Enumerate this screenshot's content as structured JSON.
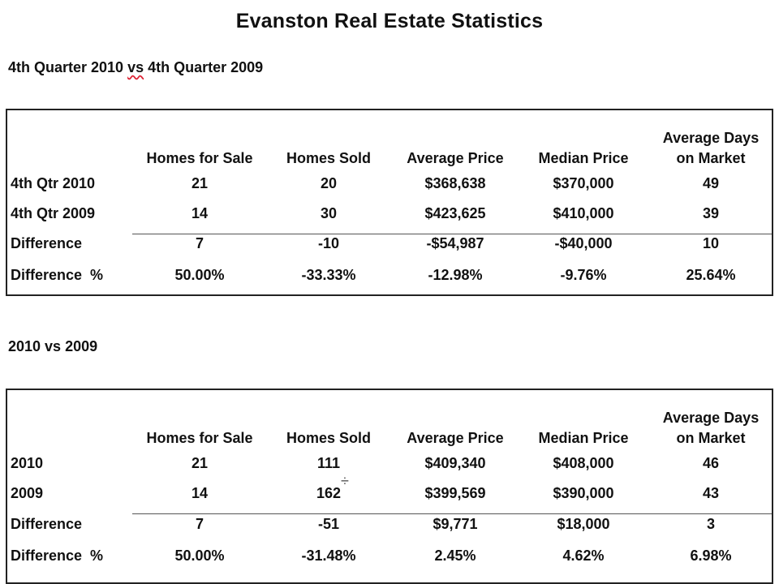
{
  "page": {
    "title": "Evanston Real Estate Statistics"
  },
  "tables": [
    {
      "heading_parts": [
        "4th Quarter 2010 ",
        "vs",
        " 4th Quarter 2009"
      ],
      "columns": [
        "Homes for Sale",
        "Homes Sold",
        "Average Price",
        "Median Price",
        "Average Days on Market"
      ],
      "column_lines": [
        [
          "Homes for Sale"
        ],
        [
          "Homes Sold"
        ],
        [
          "Average Price"
        ],
        [
          "Median Price"
        ],
        [
          "Average Days",
          "on Market"
        ]
      ],
      "rows": [
        {
          "label": "4th Qtr 2010",
          "values": [
            "21",
            "20",
            "$368,638",
            "$370,000",
            "49"
          ]
        },
        {
          "label": "4th Qtr 2009",
          "values": [
            "14",
            "30",
            "$423,625",
            "$410,000",
            "39"
          ]
        },
        {
          "label": "Difference",
          "values": [
            "7",
            "-10",
            "-$54,987",
            "-$40,000",
            "10"
          ]
        },
        {
          "label": "Difference  %",
          "values": [
            "50.00%",
            "-33.33%",
            "-12.98%",
            "-9.76%",
            "25.64%"
          ]
        }
      ]
    },
    {
      "heading_parts": [
        "2010 vs 2009"
      ],
      "columns": [
        "Homes for Sale",
        "Homes Sold",
        "Average Price",
        "Median Price",
        "Average Days on Market"
      ],
      "column_lines": [
        [
          "Homes for Sale"
        ],
        [
          "Homes Sold"
        ],
        [
          "Average Price"
        ],
        [
          "Median Price"
        ],
        [
          "Average Days",
          "on Market"
        ]
      ],
      "rows": [
        {
          "label": "2010",
          "values": [
            "21",
            "111",
            "$409,340",
            "$408,000",
            "46"
          ]
        },
        {
          "label": "2009",
          "values": [
            "14",
            "162",
            "$399,569",
            "$390,000",
            "43"
          ]
        },
        {
          "label": "Difference",
          "values": [
            "7",
            "-51",
            "$9,771",
            "$18,000",
            "3"
          ]
        },
        {
          "label": "Difference  %",
          "values": [
            "50.00%",
            "-31.48%",
            "2.45%",
            "4.62%",
            "6.98%"
          ]
        }
      ]
    }
  ],
  "overlay": {
    "cursor_icon": "move-cursor-icon",
    "cursor_glyph": "÷"
  }
}
